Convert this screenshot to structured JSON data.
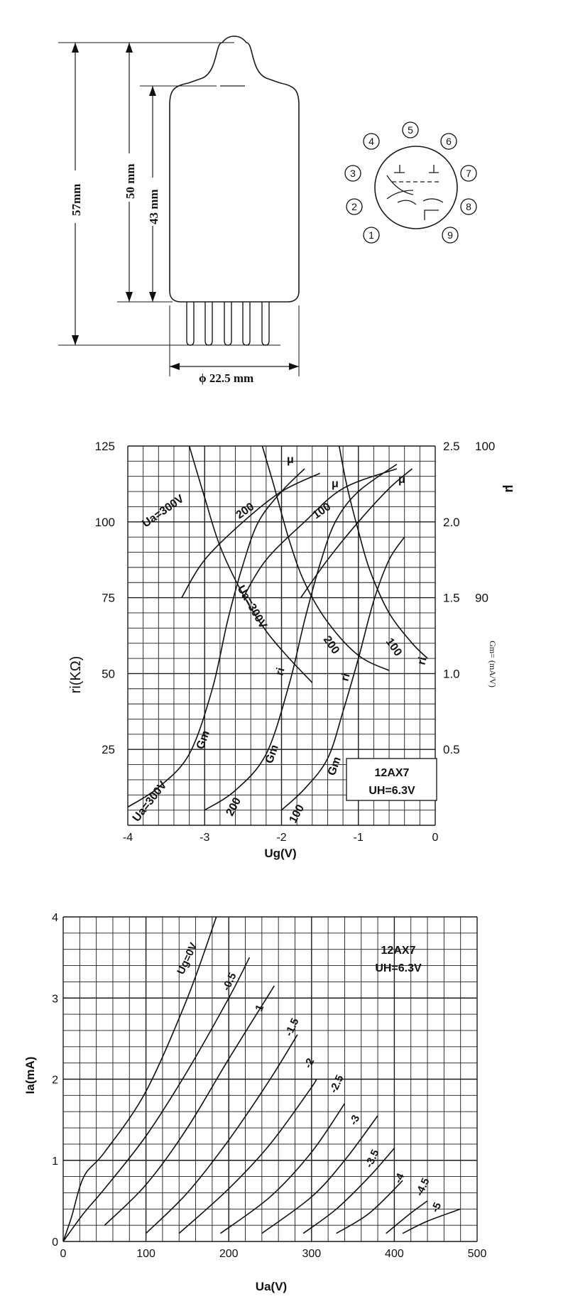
{
  "tube": {
    "dim_total": "57mm",
    "dim_body": "50 mm",
    "dim_envelope": "43 mm",
    "dim_diameter": "ϕ 22.5 mm",
    "pins": [
      "1",
      "2",
      "3",
      "4",
      "5",
      "6",
      "7",
      "8",
      "9"
    ]
  },
  "chart_data": [
    {
      "type": "line",
      "title": "12AX7",
      "note": "UH=6.3V",
      "xlabel": "Ug(V)",
      "ylabel_left": "ri(KΩ)",
      "ylabel_right_gm": "Gm= (mA/V)",
      "ylabel_right_mu": "μ",
      "xlim": [
        -4,
        0
      ],
      "ylim_ri": [
        0,
        125
      ],
      "ylim_gm": [
        0,
        2.5
      ],
      "ylim_mu": [
        75,
        100
      ],
      "x_ticks": [
        "-4",
        "-3",
        "-2",
        "-1",
        "0"
      ],
      "ri_ticks": [
        "125",
        "100",
        "75",
        "50",
        "25"
      ],
      "gm_ticks": [
        "2.5",
        "2.0",
        "1.5",
        "1.0",
        "0.5"
      ],
      "mu_ticks": [
        "100",
        "90"
      ],
      "series": [
        {
          "name": "ri Ua=300V",
          "quantity": "ri",
          "points": [
            [
              -3.2,
              125
            ],
            [
              -3.0,
              108
            ],
            [
              -2.8,
              92
            ],
            [
              -2.5,
              76
            ],
            [
              -2.2,
              64
            ],
            [
              -1.9,
              55
            ],
            [
              -1.6,
              47
            ]
          ]
        },
        {
          "name": "ri 200",
          "quantity": "ri",
          "points": [
            [
              -2.25,
              125
            ],
            [
              -2.1,
              112
            ],
            [
              -1.9,
              94
            ],
            [
              -1.7,
              80
            ],
            [
              -1.4,
              67
            ],
            [
              -1.0,
              56
            ],
            [
              -0.6,
              51
            ]
          ]
        },
        {
          "name": "ri 100",
          "quantity": "ri",
          "points": [
            [
              -1.25,
              125
            ],
            [
              -1.15,
              112
            ],
            [
              -1.0,
              97
            ],
            [
              -0.85,
              84
            ],
            [
              -0.6,
              70
            ],
            [
              -0.3,
              60
            ],
            [
              -0.1,
              55
            ]
          ]
        },
        {
          "name": "Gm Ua=300V",
          "quantity": "gm",
          "points": [
            [
              -4.0,
              0.12
            ],
            [
              -3.6,
              0.25
            ],
            [
              -3.2,
              0.47
            ],
            [
              -2.9,
              0.9
            ],
            [
              -2.7,
              1.35
            ],
            [
              -2.5,
              1.72
            ],
            [
              -2.3,
              2.0
            ],
            [
              -2.0,
              2.2
            ],
            [
              -1.7,
              2.35
            ]
          ]
        },
        {
          "name": "Gm 200",
          "quantity": "gm",
          "points": [
            [
              -3.0,
              0.1
            ],
            [
              -2.6,
              0.23
            ],
            [
              -2.2,
              0.47
            ],
            [
              -1.9,
              0.93
            ],
            [
              -1.7,
              1.35
            ],
            [
              -1.5,
              1.72
            ],
            [
              -1.3,
              2.0
            ],
            [
              -1.0,
              2.2
            ],
            [
              -0.5,
              2.38
            ]
          ]
        },
        {
          "name": "Gm 100",
          "quantity": "gm",
          "points": [
            [
              -2.0,
              0.1
            ],
            [
              -1.7,
              0.24
            ],
            [
              -1.4,
              0.44
            ],
            [
              -1.2,
              0.75
            ],
            [
              -1.0,
              1.1
            ],
            [
              -0.8,
              1.48
            ],
            [
              -0.6,
              1.75
            ],
            [
              -0.4,
              1.9
            ]
          ]
        },
        {
          "name": "μ Ua=300V",
          "quantity": "mu",
          "points": [
            [
              -3.3,
              90
            ],
            [
              -3.0,
              92.5
            ],
            [
              -2.5,
              95
            ],
            [
              -2.0,
              97
            ],
            [
              -1.5,
              98.2
            ]
          ]
        },
        {
          "name": "μ 200",
          "quantity": "mu",
          "points": [
            [
              -2.5,
              90
            ],
            [
              -2.2,
              92.5
            ],
            [
              -1.7,
              95
            ],
            [
              -1.2,
              97.2
            ],
            [
              -0.5,
              98.5
            ]
          ]
        },
        {
          "name": "μ 100",
          "quantity": "mu",
          "points": [
            [
              -1.75,
              90
            ],
            [
              -1.4,
              92.5
            ],
            [
              -1.0,
              95
            ],
            [
              -0.6,
              97.2
            ],
            [
              -0.3,
              98.5
            ]
          ]
        }
      ],
      "annotations": {
        "ri_300": "Ua=300V",
        "ri_200": "200",
        "ri_100": "100",
        "gm_300": "Ua=300V",
        "gm_200": "200",
        "gm_100": "100",
        "mu_300": "Ua=300V",
        "mu_200": "200",
        "mu_100": "100",
        "ri_mark": "ri",
        "gm_mark": "Gm",
        "mu_mark": "μ"
      }
    },
    {
      "type": "line",
      "title": "12AX7",
      "note": "UH=6.3V",
      "xlabel": "Ua(V)",
      "ylabel": "Ia(mA)",
      "xlim": [
        0,
        500
      ],
      "ylim": [
        0,
        4
      ],
      "x_ticks": [
        "0",
        "100",
        "200",
        "300",
        "400",
        "500"
      ],
      "y_ticks": [
        "0",
        "1",
        "2",
        "3",
        "4"
      ],
      "series": [
        {
          "name": "Ug=0V",
          "points": [
            [
              0,
              0
            ],
            [
              10,
              0.3
            ],
            [
              25,
              0.8
            ],
            [
              50,
              1.1
            ],
            [
              100,
              1.85
            ],
            [
              150,
              3.0
            ],
            [
              185,
              4.0
            ]
          ]
        },
        {
          "name": "-0.5",
          "points": [
            [
              0,
              0
            ],
            [
              25,
              0.35
            ],
            [
              50,
              0.65
            ],
            [
              100,
              1.3
            ],
            [
              150,
              2.1
            ],
            [
              200,
              3.0
            ],
            [
              225,
              3.5
            ]
          ]
        },
        {
          "name": "1",
          "points": [
            [
              50,
              0.2
            ],
            [
              100,
              0.7
            ],
            [
              150,
              1.4
            ],
            [
              200,
              2.25
            ],
            [
              255,
              3.15
            ]
          ]
        },
        {
          "name": "-1.5",
          "points": [
            [
              100,
              0.1
            ],
            [
              150,
              0.6
            ],
            [
              200,
              1.25
            ],
            [
              250,
              2.0
            ],
            [
              283,
              2.55
            ]
          ]
        },
        {
          "name": "-2",
          "points": [
            [
              140,
              0.1
            ],
            [
              200,
              0.65
            ],
            [
              250,
              1.2
            ],
            [
              300,
              1.9
            ],
            [
              305,
              2.0
            ]
          ]
        },
        {
          "name": "-2.5",
          "points": [
            [
              190,
              0.1
            ],
            [
              250,
              0.55
            ],
            [
              300,
              1.1
            ],
            [
              340,
              1.7
            ]
          ]
        },
        {
          "name": "-3",
          "points": [
            [
              240,
              0.1
            ],
            [
              300,
              0.55
            ],
            [
              340,
              1.0
            ],
            [
              380,
              1.55
            ]
          ]
        },
        {
          "name": "-3.5",
          "points": [
            [
              290,
              0.1
            ],
            [
              330,
              0.4
            ],
            [
              370,
              0.8
            ],
            [
              400,
              1.15
            ]
          ]
        },
        {
          "name": "-4",
          "points": [
            [
              330,
              0.1
            ],
            [
              370,
              0.35
            ],
            [
              410,
              0.75
            ]
          ]
        },
        {
          "name": "-4.5",
          "points": [
            [
              390,
              0.1
            ],
            [
              420,
              0.35
            ],
            [
              440,
              0.5
            ]
          ]
        },
        {
          "name": "-5",
          "points": [
            [
              410,
              0.1
            ],
            [
              440,
              0.25
            ],
            [
              480,
              0.4
            ]
          ]
        }
      ]
    }
  ]
}
